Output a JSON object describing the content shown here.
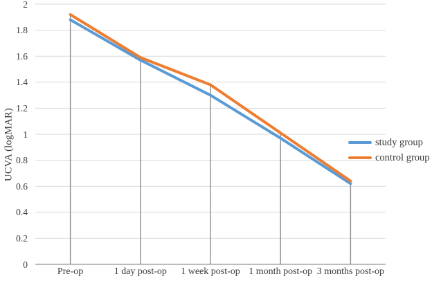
{
  "chart_data": {
    "type": "line",
    "title": "",
    "xlabel": "",
    "ylabel": "UCVA (logMAR)",
    "categories": [
      "Pre-op",
      "1 day post-op",
      "1 week post-op",
      "1 month post-op",
      "3 months post-op"
    ],
    "series": [
      {
        "name": "study group",
        "color": "#5B9BD5",
        "values": [
          1.88,
          1.57,
          1.3,
          0.97,
          0.62
        ]
      },
      {
        "name": "control group",
        "color": "#ED7D31",
        "values": [
          1.92,
          1.59,
          1.38,
          1.01,
          0.64
        ]
      }
    ],
    "ylim": [
      0,
      2
    ],
    "ytick_step": 0.2,
    "ytick_labels_top_to_bottom": [
      "2",
      "1.8",
      "1.6",
      "1.4",
      "1.2",
      "1",
      "0.8",
      "0.6",
      "0.4",
      "0.2",
      "0"
    ],
    "grid": true,
    "drop_lines": true,
    "markers": false,
    "legend_position": "right",
    "colors": {
      "gridline": "#d9d9d9",
      "axis_line": "#a6a6a6",
      "drop_line": "#8c8c8c",
      "text": "#3a3a3a",
      "background": "#ffffff"
    }
  }
}
